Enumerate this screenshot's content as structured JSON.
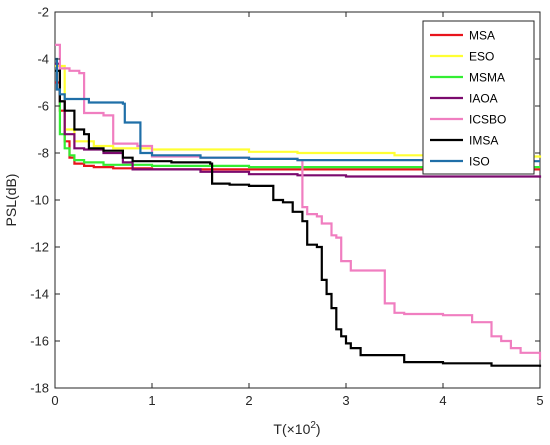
{
  "chart_data": {
    "type": "line",
    "title": "",
    "xlabel": "T(×10",
    "xlabel_sup": "2",
    "xlabel_close": ")",
    "ylabel": "PSL(dB)",
    "xlim": [
      0,
      5
    ],
    "ylim": [
      -18,
      -2
    ],
    "xticks": [
      "0",
      "1",
      "2",
      "3",
      "4",
      "5"
    ],
    "yticks": [
      "-18",
      "-16",
      "-14",
      "-12",
      "-10",
      "-8",
      "-6",
      "-4",
      "-2"
    ],
    "grid": false,
    "legend_position": "top-right",
    "series": [
      {
        "name": "MSA",
        "color": "#e8141c",
        "points": [
          [
            0,
            -5.0
          ],
          [
            0.05,
            -6.2
          ],
          [
            0.1,
            -7.5
          ],
          [
            0.15,
            -8.2
          ],
          [
            0.2,
            -8.45
          ],
          [
            0.3,
            -8.55
          ],
          [
            0.4,
            -8.6
          ],
          [
            0.6,
            -8.65
          ],
          [
            1.0,
            -8.7
          ],
          [
            2.0,
            -8.7
          ],
          [
            3.0,
            -8.7
          ],
          [
            5.0,
            -8.7
          ]
        ]
      },
      {
        "name": "ESO",
        "color": "#ffff33",
        "points": [
          [
            0,
            -4.3
          ],
          [
            0.1,
            -7.0
          ],
          [
            0.2,
            -7.5
          ],
          [
            0.4,
            -7.7
          ],
          [
            0.6,
            -7.8
          ],
          [
            1.0,
            -7.85
          ],
          [
            2.0,
            -7.95
          ],
          [
            2.5,
            -8.0
          ],
          [
            3.0,
            -8.0
          ],
          [
            3.5,
            -8.1
          ],
          [
            4.0,
            -8.15
          ],
          [
            5.0,
            -8.2
          ]
        ]
      },
      {
        "name": "MSMA",
        "color": "#33ee33",
        "points": [
          [
            0,
            -4.5
          ],
          [
            0.05,
            -7.2
          ],
          [
            0.1,
            -7.8
          ],
          [
            0.15,
            -8.1
          ],
          [
            0.2,
            -8.3
          ],
          [
            0.3,
            -8.4
          ],
          [
            0.5,
            -8.5
          ],
          [
            1.0,
            -8.55
          ],
          [
            2.0,
            -8.6
          ],
          [
            3.0,
            -8.6
          ],
          [
            5.0,
            -8.6
          ]
        ]
      },
      {
        "name": "IAOA",
        "color": "#7b0a6e",
        "points": [
          [
            0,
            -4.2
          ],
          [
            0.05,
            -5.8
          ],
          [
            0.1,
            -7.2
          ],
          [
            0.2,
            -7.8
          ],
          [
            0.3,
            -7.85
          ],
          [
            0.5,
            -8.0
          ],
          [
            0.7,
            -8.4
          ],
          [
            0.8,
            -8.7
          ],
          [
            1.0,
            -8.7
          ],
          [
            1.5,
            -8.8
          ],
          [
            2.0,
            -8.9
          ],
          [
            2.5,
            -8.95
          ],
          [
            3.0,
            -9.0
          ],
          [
            5.0,
            -9.05
          ]
        ]
      },
      {
        "name": "ICSBO",
        "color": "#f07ec0",
        "points": [
          [
            0,
            -3.4
          ],
          [
            0.05,
            -4.4
          ],
          [
            0.15,
            -4.5
          ],
          [
            0.2,
            -4.5
          ],
          [
            0.25,
            -4.6
          ],
          [
            0.3,
            -6.3
          ],
          [
            0.5,
            -6.4
          ],
          [
            0.6,
            -7.6
          ],
          [
            0.85,
            -7.7
          ],
          [
            1.0,
            -8.15
          ],
          [
            1.5,
            -8.2
          ],
          [
            2.0,
            -8.25
          ],
          [
            2.5,
            -8.3
          ],
          [
            2.55,
            -10.3
          ],
          [
            2.6,
            -10.6
          ],
          [
            2.7,
            -10.7
          ],
          [
            2.75,
            -11.0
          ],
          [
            2.85,
            -11.5
          ],
          [
            2.9,
            -11.6
          ],
          [
            2.95,
            -12.6
          ],
          [
            3.0,
            -12.6
          ],
          [
            3.05,
            -13.0
          ],
          [
            3.3,
            -13.0
          ],
          [
            3.4,
            -14.4
          ],
          [
            3.5,
            -14.8
          ],
          [
            3.6,
            -14.85
          ],
          [
            4.0,
            -14.9
          ],
          [
            4.3,
            -15.2
          ],
          [
            4.5,
            -15.8
          ],
          [
            4.6,
            -16.0
          ],
          [
            4.7,
            -16.3
          ],
          [
            4.8,
            -16.5
          ],
          [
            5.0,
            -16.8
          ]
        ]
      },
      {
        "name": "IMSA",
        "color": "#000000",
        "points": [
          [
            0,
            -4.5
          ],
          [
            0.05,
            -5.8
          ],
          [
            0.1,
            -6.2
          ],
          [
            0.2,
            -7.0
          ],
          [
            0.3,
            -7.2
          ],
          [
            0.35,
            -7.8
          ],
          [
            0.5,
            -7.9
          ],
          [
            0.7,
            -8.2
          ],
          [
            0.8,
            -8.35
          ],
          [
            1.2,
            -8.4
          ],
          [
            1.6,
            -8.45
          ],
          [
            1.62,
            -9.3
          ],
          [
            1.8,
            -9.35
          ],
          [
            2.0,
            -9.4
          ],
          [
            2.2,
            -9.4
          ],
          [
            2.25,
            -10.0
          ],
          [
            2.35,
            -10.1
          ],
          [
            2.45,
            -10.5
          ],
          [
            2.55,
            -10.9
          ],
          [
            2.6,
            -11.9
          ],
          [
            2.7,
            -12.0
          ],
          [
            2.75,
            -13.4
          ],
          [
            2.8,
            -14.0
          ],
          [
            2.85,
            -14.6
          ],
          [
            2.9,
            -15.5
          ],
          [
            2.95,
            -15.8
          ],
          [
            3.0,
            -16.1
          ],
          [
            3.05,
            -16.3
          ],
          [
            3.15,
            -16.6
          ],
          [
            3.5,
            -16.6
          ],
          [
            3.6,
            -16.9
          ],
          [
            4.0,
            -16.95
          ],
          [
            4.5,
            -17.05
          ],
          [
            5.0,
            -17.1
          ]
        ]
      },
      {
        "name": "ISO",
        "color": "#1f6fa8",
        "points": [
          [
            0,
            -4.0
          ],
          [
            0.02,
            -5.3
          ],
          [
            0.05,
            -5.5
          ],
          [
            0.1,
            -5.7
          ],
          [
            0.35,
            -5.85
          ],
          [
            0.7,
            -5.9
          ],
          [
            0.72,
            -6.7
          ],
          [
            0.85,
            -6.7
          ],
          [
            0.88,
            -8.0
          ],
          [
            1.0,
            -8.1
          ],
          [
            1.5,
            -8.2
          ],
          [
            2.0,
            -8.25
          ],
          [
            2.5,
            -8.3
          ],
          [
            3.0,
            -8.3
          ],
          [
            4.0,
            -8.35
          ],
          [
            5.0,
            -8.35
          ]
        ]
      }
    ]
  }
}
